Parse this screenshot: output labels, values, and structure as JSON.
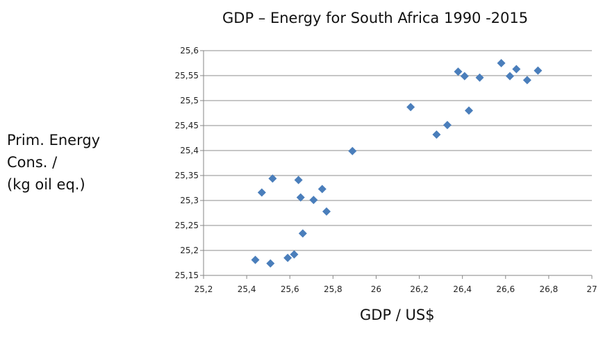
{
  "chart_data": {
    "type": "scatter",
    "title": "GDP – Energy for South Africa 1990 -2015",
    "xlabel": "GDP / US$",
    "ylabel_lines": [
      "Prim. Energy",
      "Cons. /",
      "(kg oil eq.)"
    ],
    "xlim": [
      25.2,
      27
    ],
    "ylim": [
      25.15,
      25.6
    ],
    "xticks": [
      "25,2",
      "25,4",
      "25,6",
      "25,8",
      "26",
      "26,2",
      "26,4",
      "26,6",
      "26,8",
      "27"
    ],
    "yticks": [
      "25,15",
      "25,2",
      "25,25",
      "25,3",
      "25,35",
      "25,4",
      "25,45",
      "25,5",
      "25,55",
      "25,6"
    ],
    "grid": "horizontal",
    "marker": "diamond",
    "colors": {
      "marker": "#4a7ebb",
      "grid": "#8c8c8c",
      "axis": "#868686"
    },
    "points": [
      {
        "x": 25.44,
        "y": 25.181
      },
      {
        "x": 25.51,
        "y": 25.174
      },
      {
        "x": 25.59,
        "y": 25.185
      },
      {
        "x": 25.62,
        "y": 25.192
      },
      {
        "x": 25.66,
        "y": 25.234
      },
      {
        "x": 25.47,
        "y": 25.316
      },
      {
        "x": 25.52,
        "y": 25.344
      },
      {
        "x": 25.64,
        "y": 25.341
      },
      {
        "x": 25.65,
        "y": 25.306
      },
      {
        "x": 25.71,
        "y": 25.301
      },
      {
        "x": 25.75,
        "y": 25.323
      },
      {
        "x": 25.77,
        "y": 25.278
      },
      {
        "x": 25.89,
        "y": 25.399
      },
      {
        "x": 26.16,
        "y": 25.487
      },
      {
        "x": 26.28,
        "y": 25.432
      },
      {
        "x": 26.33,
        "y": 25.451
      },
      {
        "x": 26.38,
        "y": 25.558
      },
      {
        "x": 26.41,
        "y": 25.549
      },
      {
        "x": 26.43,
        "y": 25.48
      },
      {
        "x": 26.48,
        "y": 25.546
      },
      {
        "x": 26.58,
        "y": 25.575
      },
      {
        "x": 26.62,
        "y": 25.549
      },
      {
        "x": 26.65,
        "y": 25.563
      },
      {
        "x": 26.7,
        "y": 25.541
      },
      {
        "x": 26.75,
        "y": 25.56
      }
    ]
  }
}
